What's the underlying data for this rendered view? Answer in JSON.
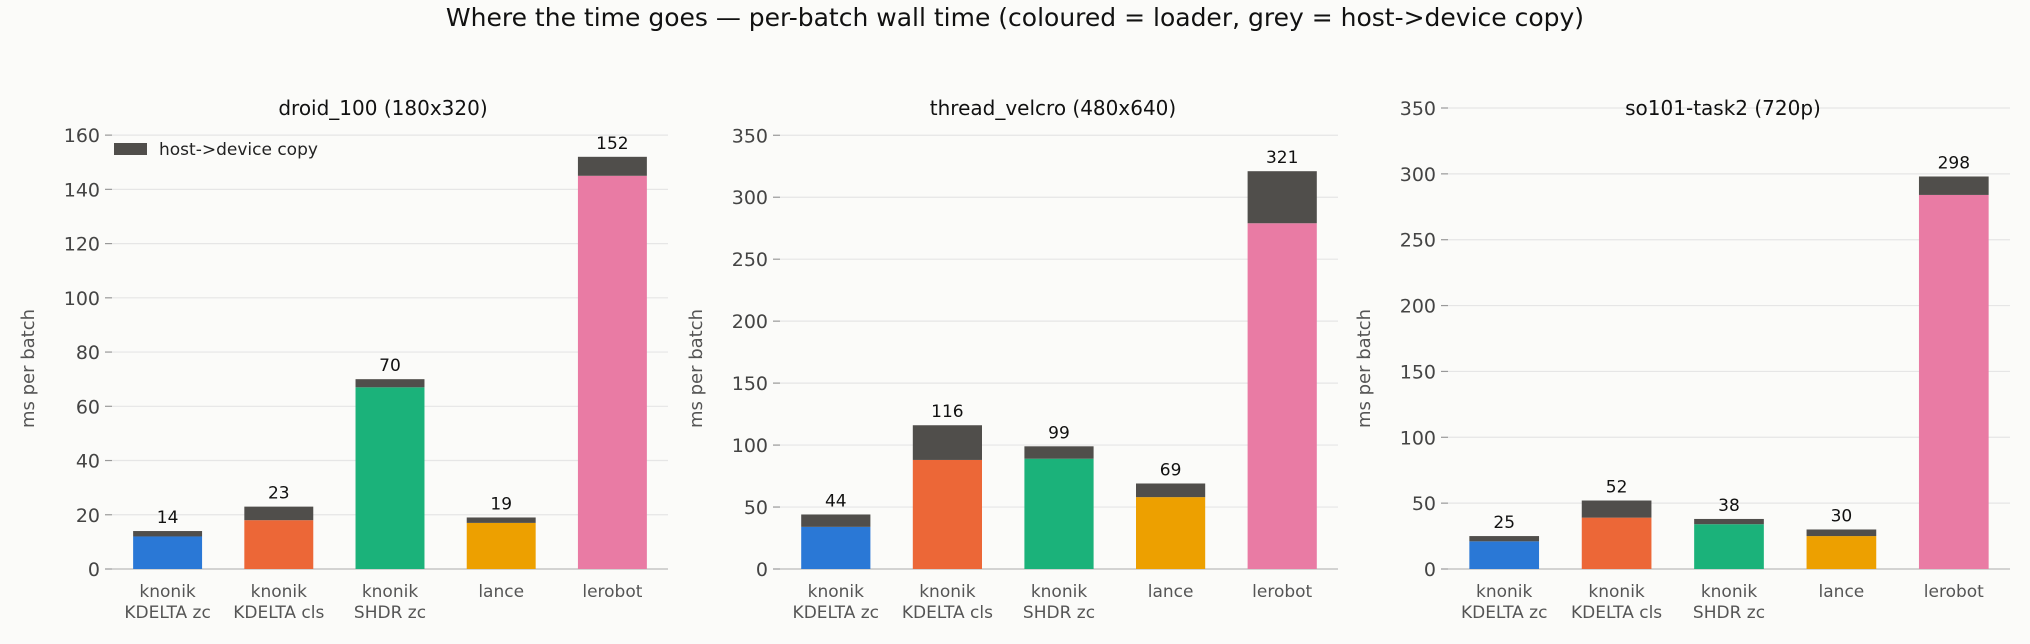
{
  "figure": {
    "title": "Where the time goes  —  per-batch wall time  (coloured = loader, grey = host->device copy)"
  },
  "colors": {
    "loaders": [
      "#2a78d6",
      "#ec6737",
      "#1bb27a",
      "#eda000",
      "#e97ba4"
    ],
    "copy": "#504e4b"
  },
  "chart_data": [
    {
      "type": "bar",
      "stacked": true,
      "title": "droid_100 (180x320)",
      "ylabel": "ms per batch",
      "categories": [
        [
          "knonik",
          "KDELTA zc"
        ],
        [
          "knonik",
          "KDELTA cls"
        ],
        [
          "knonik",
          "SHDR zc"
        ],
        [
          "lance"
        ],
        [
          "lerobot"
        ]
      ],
      "series": [
        {
          "role": "loader",
          "values": [
            12,
            18,
            67,
            17,
            145
          ]
        },
        {
          "name": "host->device copy",
          "role": "copy",
          "values": [
            2,
            5,
            3,
            2,
            7
          ]
        }
      ],
      "totals": [
        "14",
        "23",
        "70",
        "19",
        "152"
      ],
      "yticks": [
        0,
        20,
        40,
        60,
        80,
        100,
        120,
        140,
        160
      ],
      "ylim": [
        0,
        170
      ],
      "grid": true,
      "legend": "top-left"
    },
    {
      "type": "bar",
      "stacked": true,
      "title": "thread_velcro (480x640)",
      "ylabel": "ms per batch",
      "categories": [
        [
          "knonik",
          "KDELTA zc"
        ],
        [
          "knonik",
          "KDELTA cls"
        ],
        [
          "knonik",
          "SHDR zc"
        ],
        [
          "lance"
        ],
        [
          "lerobot"
        ]
      ],
      "series": [
        {
          "role": "loader",
          "values": [
            34,
            88,
            89,
            58,
            279
          ]
        },
        {
          "role": "copy",
          "values": [
            10,
            28,
            10,
            11,
            42
          ]
        }
      ],
      "totals": [
        "44",
        "116",
        "99",
        "69",
        "321"
      ],
      "yticks": [
        0,
        50,
        100,
        150,
        200,
        250,
        300,
        350
      ],
      "ylim": [
        0,
        372
      ],
      "grid": true
    },
    {
      "type": "bar",
      "stacked": true,
      "title": "so101-task2 (720p)",
      "ylabel": "ms per batch",
      "categories": [
        [
          "knonik",
          "KDELTA zc"
        ],
        [
          "knonik",
          "KDELTA cls"
        ],
        [
          "knonik",
          "SHDR zc"
        ],
        [
          "lance"
        ],
        [
          "lerobot"
        ]
      ],
      "series": [
        {
          "role": "loader",
          "values": [
            21,
            39,
            34,
            25,
            284
          ]
        },
        {
          "role": "copy",
          "values": [
            4,
            13,
            4,
            5,
            14
          ]
        }
      ],
      "totals": [
        "25",
        "52",
        "38",
        "30",
        "298"
      ],
      "yticks": [
        0,
        50,
        100,
        150,
        200,
        250,
        300,
        350
      ],
      "ylim": [
        0,
        350
      ],
      "grid": true
    }
  ]
}
